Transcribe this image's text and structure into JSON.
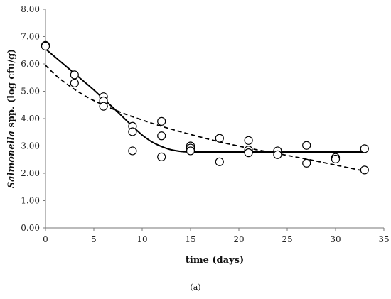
{
  "chart_data": {
    "type": "scatter",
    "xlabel": "time (days)",
    "ylabel_italic": "Salmonella",
    "ylabel_rest": " spp. (log cfu/g)",
    "caption": "(a)",
    "xlim": [
      0,
      35
    ],
    "ylim": [
      0,
      8
    ],
    "x_ticks": [
      "0",
      "5",
      "10",
      "15",
      "20",
      "25",
      "30",
      "35"
    ],
    "y_ticks": [
      "0.00",
      "1.00",
      "2.00",
      "3.00",
      "4.00",
      "5.00",
      "6.00",
      "7.00",
      "8.00"
    ],
    "grid": false,
    "legend": "none",
    "points": [
      {
        "x": 0,
        "y": 6.68
      },
      {
        "x": 0,
        "y": 6.65
      },
      {
        "x": 3,
        "y": 5.6
      },
      {
        "x": 3,
        "y": 5.3
      },
      {
        "x": 6,
        "y": 4.8
      },
      {
        "x": 6,
        "y": 4.65
      },
      {
        "x": 6,
        "y": 4.45
      },
      {
        "x": 9,
        "y": 3.72
      },
      {
        "x": 9,
        "y": 3.52
      },
      {
        "x": 9,
        "y": 2.82
      },
      {
        "x": 12,
        "y": 3.9
      },
      {
        "x": 12,
        "y": 3.37
      },
      {
        "x": 12,
        "y": 2.6
      },
      {
        "x": 15,
        "y": 3.0
      },
      {
        "x": 15,
        "y": 2.92
      },
      {
        "x": 15,
        "y": 2.82
      },
      {
        "x": 18,
        "y": 3.28
      },
      {
        "x": 18,
        "y": 2.42
      },
      {
        "x": 21,
        "y": 3.2
      },
      {
        "x": 21,
        "y": 2.85
      },
      {
        "x": 21,
        "y": 2.75
      },
      {
        "x": 24,
        "y": 2.82
      },
      {
        "x": 24,
        "y": 2.68
      },
      {
        "x": 27,
        "y": 3.02
      },
      {
        "x": 27,
        "y": 2.37
      },
      {
        "x": 30,
        "y": 2.58
      },
      {
        "x": 30,
        "y": 2.52
      },
      {
        "x": 33,
        "y": 2.9
      },
      {
        "x": 33,
        "y": 2.12
      }
    ],
    "series": [
      {
        "style": "solid",
        "x": [
          0,
          1,
          2,
          3,
          4,
          5,
          6,
          7,
          8,
          9,
          10,
          11,
          12,
          13,
          14,
          15,
          18,
          21,
          24,
          27,
          30,
          33
        ],
        "y": [
          6.55,
          6.25,
          5.95,
          5.65,
          5.35,
          5.05,
          4.72,
          4.4,
          4.06,
          3.72,
          3.4,
          3.15,
          2.98,
          2.86,
          2.8,
          2.78,
          2.78,
          2.78,
          2.78,
          2.78,
          2.78,
          2.78
        ]
      },
      {
        "style": "dashed",
        "x": [
          0,
          1,
          2,
          3,
          4,
          5,
          6,
          8,
          10,
          12,
          15,
          18,
          21,
          24,
          27,
          30,
          33
        ],
        "y": [
          5.95,
          5.6,
          5.32,
          5.07,
          4.85,
          4.66,
          4.5,
          4.2,
          3.95,
          3.72,
          3.42,
          3.15,
          2.92,
          2.72,
          2.52,
          2.3,
          2.08
        ]
      }
    ]
  }
}
